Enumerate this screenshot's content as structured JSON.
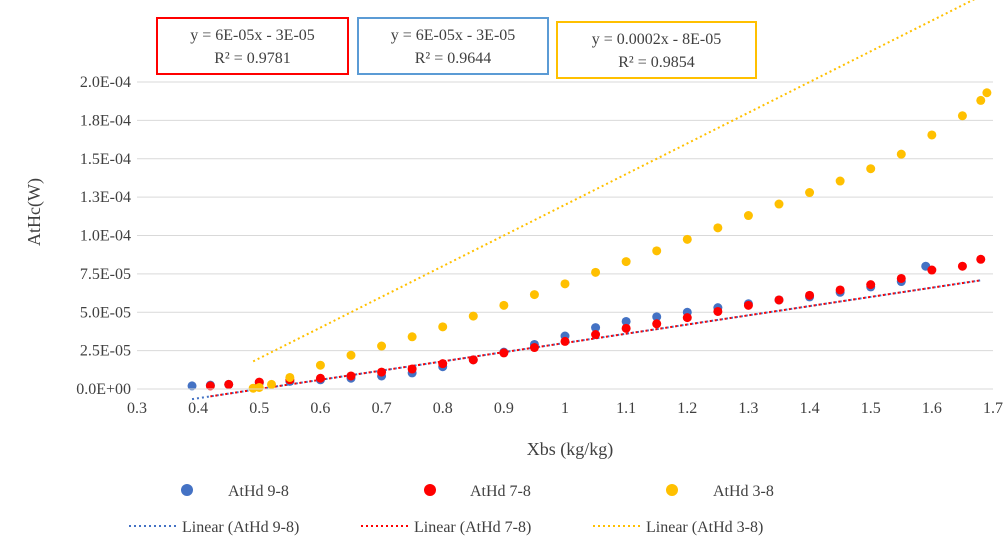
{
  "chart_data": {
    "type": "scatter",
    "xlabel": "Xbs (kg/kg)",
    "ylabel": "AtHc(W)",
    "xlim": [
      0.3,
      1.7
    ],
    "ylim": [
      0,
      0.0002
    ],
    "x_ticks": [
      "0.3",
      "0.4",
      "0.5",
      "0.6",
      "0.7",
      "0.8",
      "0.9",
      "1",
      "1.1",
      "1.2",
      "1.3",
      "1.4",
      "1.5",
      "1.6",
      "1.7"
    ],
    "x_tick_values": [
      0.3,
      0.4,
      0.5,
      0.6,
      0.7,
      0.8,
      0.9,
      1.0,
      1.1,
      1.2,
      1.3,
      1.4,
      1.5,
      1.6,
      1.7
    ],
    "y_ticks": [
      "0.0E+00",
      "2.5E-05",
      "5.0E-05",
      "7.5E-05",
      "1.0E-04",
      "1.3E-04",
      "1.5E-04",
      "1.8E-04",
      "2.0E-04"
    ],
    "y_tick_values": [
      0,
      2.5e-05,
      5e-05,
      7.5e-05,
      0.0001,
      0.000125,
      0.00015,
      0.000175,
      0.0002
    ],
    "grid": {
      "horizontal": true,
      "vertical": false
    },
    "legend_position": "bottom",
    "series": [
      {
        "name": "AtHd 9-8",
        "color": "#4472C4",
        "marker": "circle",
        "points": [
          [
            0.39,
            2e-06
          ],
          [
            0.42,
            2.5e-06
          ],
          [
            0.45,
            3e-06
          ],
          [
            0.5,
            4e-06
          ],
          [
            0.55,
            5e-06
          ],
          [
            0.6,
            6e-06
          ],
          [
            0.65,
            7e-06
          ],
          [
            0.7,
            8.5e-06
          ],
          [
            0.75,
            1.05e-05
          ],
          [
            0.8,
            1.45e-05
          ],
          [
            0.85,
            1.9e-05
          ],
          [
            0.9,
            2.4e-05
          ],
          [
            0.95,
            2.9e-05
          ],
          [
            1.0,
            3.45e-05
          ],
          [
            1.05,
            4e-05
          ],
          [
            1.1,
            4.4e-05
          ],
          [
            1.15,
            4.7e-05
          ],
          [
            1.2,
            5e-05
          ],
          [
            1.25,
            5.3e-05
          ],
          [
            1.3,
            5.55e-05
          ],
          [
            1.35,
            5.8e-05
          ],
          [
            1.4,
            6e-05
          ],
          [
            1.45,
            6.3e-05
          ],
          [
            1.5,
            6.65e-05
          ],
          [
            1.55,
            7e-05
          ],
          [
            1.59,
            8e-05
          ]
        ]
      },
      {
        "name": "AtHd 7-8",
        "color": "#FF0000",
        "marker": "circle",
        "points": [
          [
            0.42,
            2e-06
          ],
          [
            0.45,
            3e-06
          ],
          [
            0.5,
            4.5e-06
          ],
          [
            0.55,
            6e-06
          ],
          [
            0.6,
            7e-06
          ],
          [
            0.65,
            8.5e-06
          ],
          [
            0.7,
            1.1e-05
          ],
          [
            0.75,
            1.3e-05
          ],
          [
            0.8,
            1.65e-05
          ],
          [
            0.85,
            1.9e-05
          ],
          [
            0.9,
            2.35e-05
          ],
          [
            0.95,
            2.7e-05
          ],
          [
            1.0,
            3.1e-05
          ],
          [
            1.05,
            3.55e-05
          ],
          [
            1.1,
            3.95e-05
          ],
          [
            1.15,
            4.25e-05
          ],
          [
            1.2,
            4.65e-05
          ],
          [
            1.25,
            5.05e-05
          ],
          [
            1.3,
            5.45e-05
          ],
          [
            1.35,
            5.8e-05
          ],
          [
            1.4,
            6.1e-05
          ],
          [
            1.45,
            6.45e-05
          ],
          [
            1.5,
            6.8e-05
          ],
          [
            1.55,
            7.2e-05
          ],
          [
            1.6,
            7.75e-05
          ],
          [
            1.65,
            8e-05
          ],
          [
            1.68,
            8.45e-05
          ]
        ]
      },
      {
        "name": "AtHd 3-8",
        "color": "#FFC000",
        "marker": "circle",
        "points": [
          [
            0.49,
            5e-07
          ],
          [
            0.5,
            1e-06
          ],
          [
            0.52,
            3e-06
          ],
          [
            0.55,
            7.5e-06
          ],
          [
            0.6,
            1.55e-05
          ],
          [
            0.65,
            2.2e-05
          ],
          [
            0.7,
            2.8e-05
          ],
          [
            0.75,
            3.4e-05
          ],
          [
            0.8,
            4.05e-05
          ],
          [
            0.85,
            4.75e-05
          ],
          [
            0.9,
            5.45e-05
          ],
          [
            0.95,
            6.15e-05
          ],
          [
            1.0,
            6.85e-05
          ],
          [
            1.05,
            7.6e-05
          ],
          [
            1.1,
            8.3e-05
          ],
          [
            1.15,
            9e-05
          ],
          [
            1.2,
            9.75e-05
          ],
          [
            1.25,
            0.000105
          ],
          [
            1.3,
            0.000113
          ],
          [
            1.35,
            0.0001205
          ],
          [
            1.4,
            0.000128
          ],
          [
            1.45,
            0.0001355
          ],
          [
            1.5,
            0.0001435
          ],
          [
            1.55,
            0.000153
          ],
          [
            1.6,
            0.0001655
          ],
          [
            1.65,
            0.000178
          ],
          [
            1.68,
            0.000188
          ],
          [
            1.69,
            0.000193
          ]
        ]
      }
    ],
    "trendlines": [
      {
        "name": "Linear (AtHd 9-8)",
        "color": "#4472C4",
        "slope": 6e-05,
        "intercept": -3e-05,
        "x_range": [
          0.39,
          1.68
        ]
      },
      {
        "name": "Linear (AtHd 7-8)",
        "color": "#FF0000",
        "slope": 6e-05,
        "intercept": -3e-05,
        "x_range": [
          0.42,
          1.68
        ]
      },
      {
        "name": "Linear (AtHd 3-8)",
        "color": "#FFC000",
        "slope": 0.0002,
        "intercept": -8e-05,
        "x_range": [
          0.49,
          1.69
        ]
      }
    ],
    "equation_boxes": [
      {
        "equation": "y = 6E-05x  - 3E-05",
        "r2": "R² = 0.9781",
        "border_color": "#FF0000"
      },
      {
        "equation": "y = 6E-05x  - 3E-05",
        "r2": "R² = 0.9644",
        "border_color": "#5B9BD5"
      },
      {
        "equation": "y = 0.0002x  - 8E-05",
        "r2": "R² = 0.9854",
        "border_color": "#FFC000"
      }
    ]
  }
}
